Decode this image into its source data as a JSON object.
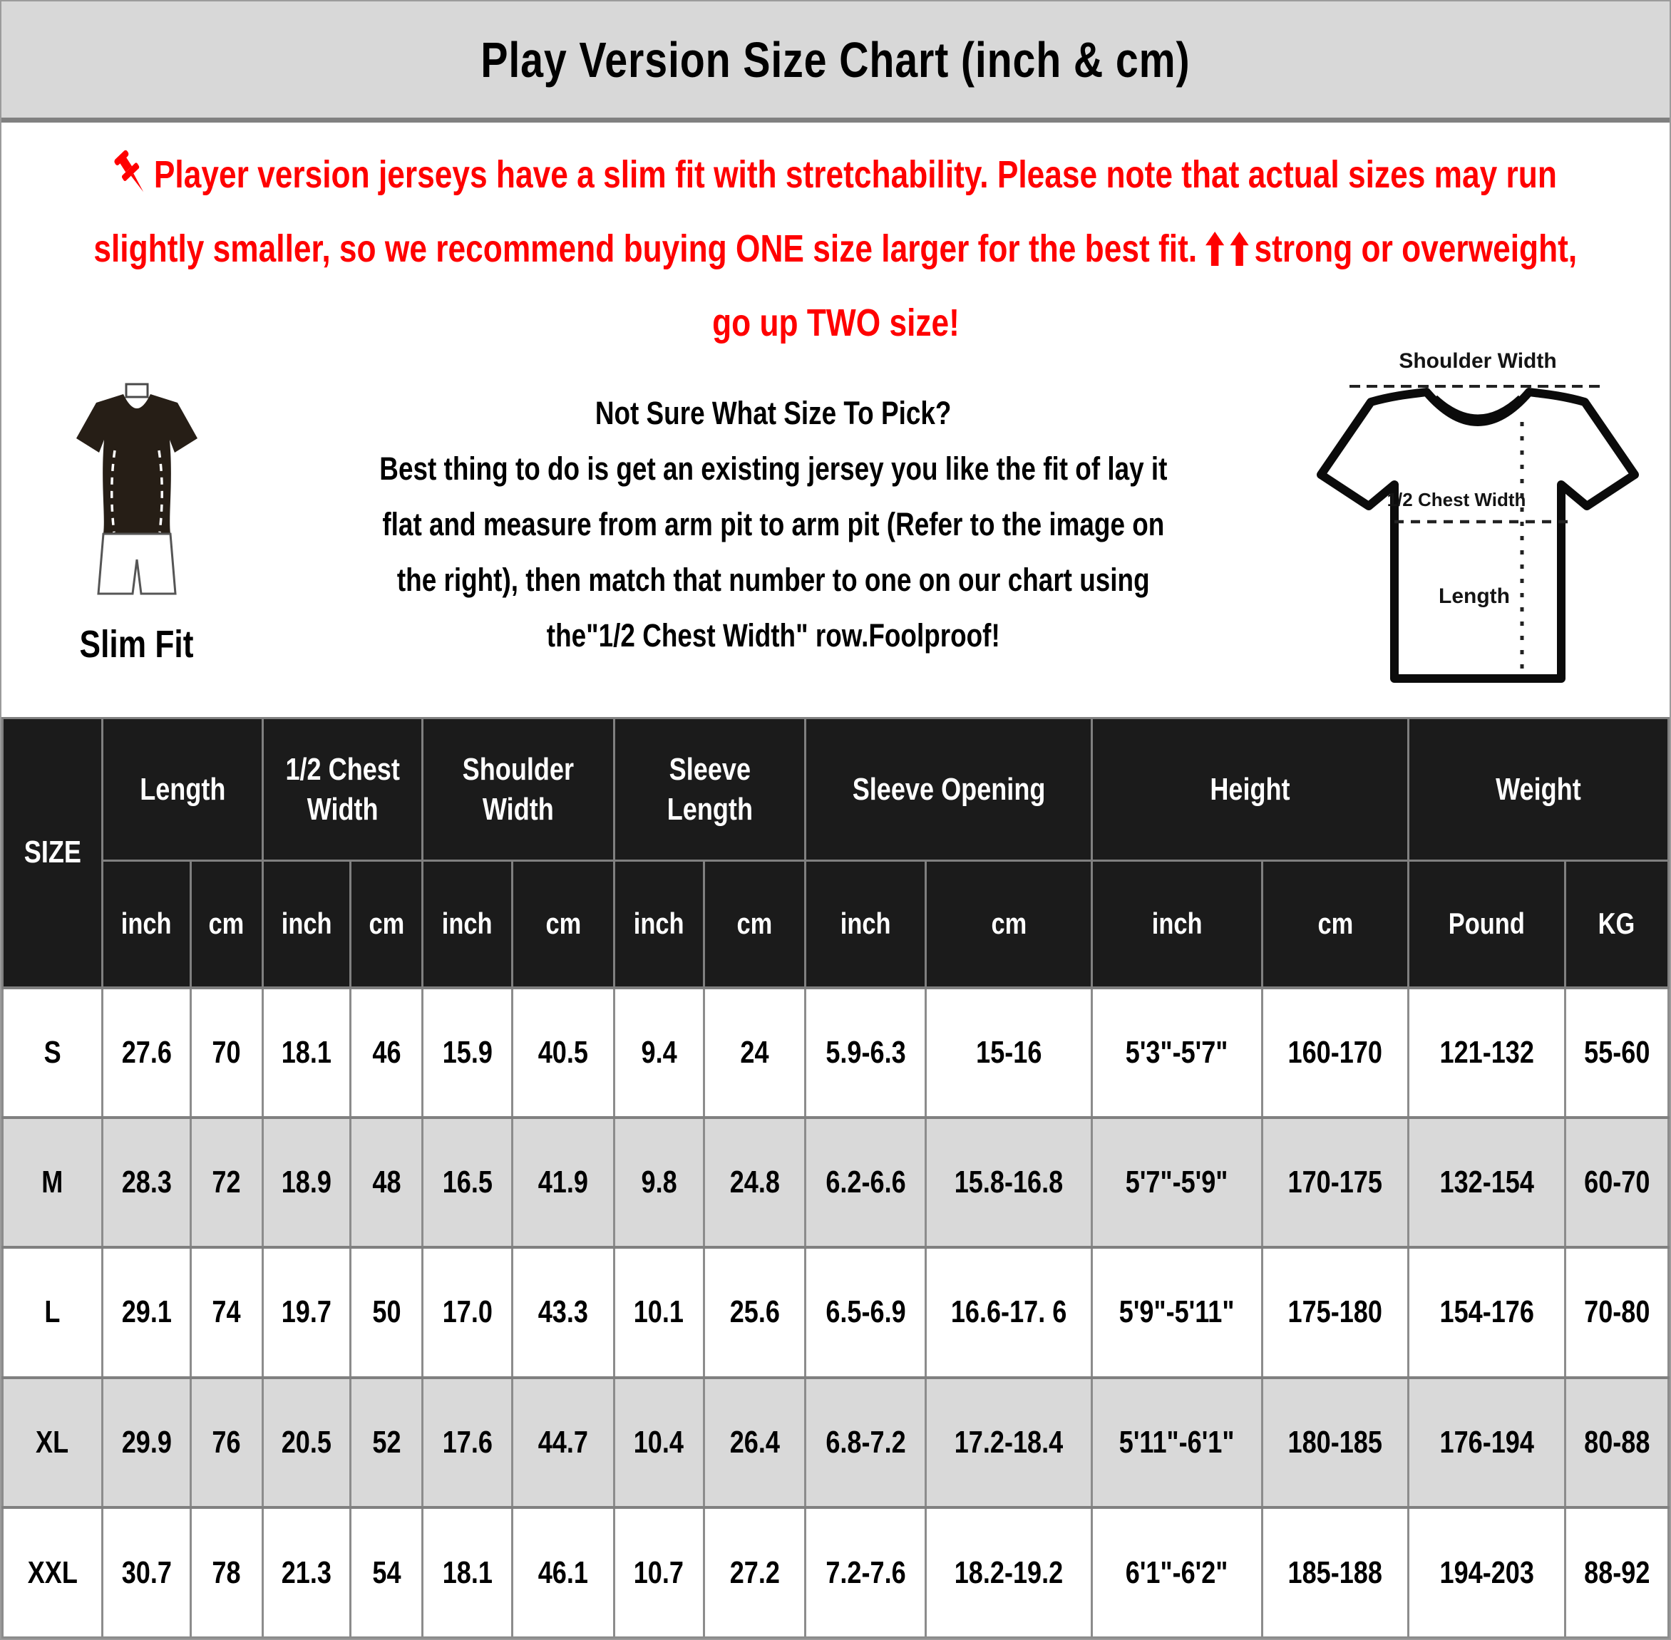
{
  "header": {
    "title": "Play Version Size Chart (inch & cm)"
  },
  "notice": {
    "line1": "Player version jerseys have a slim fit with stretchability. Please note that actual sizes may run",
    "line2a": "slightly smaller, so we recommend buying ONE size larger for the best fit.",
    "line2b": "strong or overweight,",
    "line3": "go up TWO size!"
  },
  "guide": {
    "slim_fit_label": "Slim Fit",
    "heading": "Not Sure What Size To Pick?",
    "lines": [
      "Best thing to do is get an existing jersey you like the fit of lay it",
      "flat and measure from arm pit to arm pit (Refer to the image on",
      "the right), then match that number to one on our chart using",
      "the\"1/2 Chest Width\" row.Foolproof!"
    ]
  },
  "diagram": {
    "shoulder_width_label": "Shoulder Width",
    "half_chest_width_label": "1/2 Chest Width",
    "length_label": "Length"
  },
  "icons": {
    "pushpin": "pushpin-icon",
    "up_arrow": "up-arrow-icon",
    "slim_fit_figure": "slim-fit-figure-icon",
    "tshirt_diagram": "tshirt-diagram-icon"
  },
  "colors": {
    "accent_red": "#ff0000",
    "title_bg": "#d8d8d8",
    "table_header_bg": "#1b1b1b",
    "row_alt_bg": "#d9d9d9",
    "border_gray": "#808080"
  },
  "table": {
    "size_header": "SIZE",
    "groups": [
      {
        "label": "Length",
        "units": [
          "inch",
          "cm"
        ]
      },
      {
        "label": "1/2 Chest Width",
        "units": [
          "inch",
          "cm"
        ]
      },
      {
        "label": "Shoulder Width",
        "units": [
          "inch",
          "cm"
        ]
      },
      {
        "label": "Sleeve Length",
        "units": [
          "inch",
          "cm"
        ]
      },
      {
        "label": "Sleeve Opening",
        "units": [
          "inch",
          "cm"
        ]
      },
      {
        "label": "Height",
        "units": [
          "inch",
          "cm"
        ]
      },
      {
        "label": "Weight",
        "units": [
          "Pound",
          "KG"
        ]
      }
    ],
    "rows": [
      {
        "size": "S",
        "values": [
          "27.6",
          "70",
          "18.1",
          "46",
          "15.9",
          "40.5",
          "9.4",
          "24",
          "5.9-6.3",
          "15-16",
          "5'3\"-5'7\"",
          "160-170",
          "121-132",
          "55-60"
        ]
      },
      {
        "size": "M",
        "values": [
          "28.3",
          "72",
          "18.9",
          "48",
          "16.5",
          "41.9",
          "9.8",
          "24.8",
          "6.2-6.6",
          "15.8-16.8",
          "5'7\"-5'9\"",
          "170-175",
          "132-154",
          "60-70"
        ]
      },
      {
        "size": "L",
        "values": [
          "29.1",
          "74",
          "19.7",
          "50",
          "17.0",
          "43.3",
          "10.1",
          "25.6",
          "6.5-6.9",
          "16.6-17. 6",
          "5'9\"-5'11\"",
          "175-180",
          "154-176",
          "70-80"
        ]
      },
      {
        "size": "XL",
        "values": [
          "29.9",
          "76",
          "20.5",
          "52",
          "17.6",
          "44.7",
          "10.4",
          "26.4",
          "6.8-7.2",
          "17.2-18.4",
          "5'11\"-6'1\"",
          "180-185",
          "176-194",
          "80-88"
        ]
      },
      {
        "size": "XXL",
        "values": [
          "30.7",
          "78",
          "21.3",
          "54",
          "18.1",
          "46.1",
          "10.7",
          "27.2",
          "7.2-7.6",
          "18.2-19.2",
          "6'1\"-6'2\"",
          "185-188",
          "194-203",
          "88-92"
        ]
      }
    ]
  }
}
